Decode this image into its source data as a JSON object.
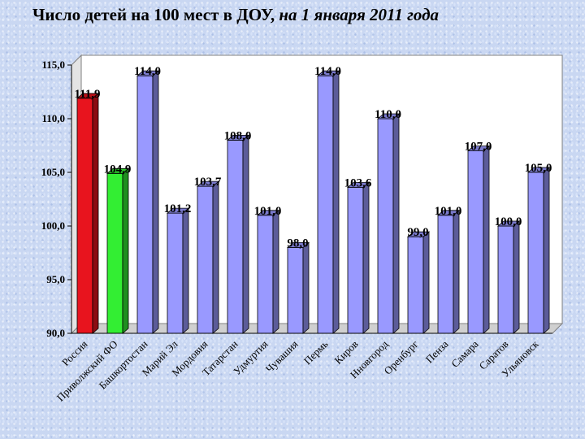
{
  "title": {
    "main": "Число детей на 100 мест в ДОУ,",
    "sub": "на 1 января 2011 года"
  },
  "chart_data": {
    "type": "bar",
    "title": "Число детей на 100 мест в ДОУ, на 1 января 2011 года",
    "categories": [
      "Россия",
      "Приволжский ФО",
      "Башкортостан",
      "Марий Эл",
      "Мордовия",
      "Татарстан",
      "Удмуртия",
      "Чувашия",
      "Пермь",
      "Киров",
      "Нновгород",
      "Оренбург",
      "Пенза",
      "Самара",
      "Саратов",
      "Ульяновск"
    ],
    "values": [
      111.9,
      104.9,
      114.0,
      101.2,
      103.7,
      108.0,
      101.0,
      98.0,
      114.0,
      103.6,
      110.0,
      99.0,
      101.0,
      107.0,
      100.0,
      105.0
    ],
    "value_labels": [
      "111,9",
      "104,9",
      "114,0",
      "101,2",
      "103,7",
      "108,0",
      "101,0",
      "98,0",
      "114,0",
      "103,6",
      "110,0",
      "99,0",
      "101,0",
      "107,0",
      "100,0",
      "105,0"
    ],
    "ylim": [
      90,
      115
    ],
    "yticks": [
      90,
      95,
      100,
      105,
      110,
      115
    ],
    "ytick_labels": [
      "90,0",
      "95,0",
      "100,0",
      "105,0",
      "110,0",
      "115,0"
    ],
    "xlabel": "",
    "ylabel": "",
    "grid": false,
    "bar_colors": [
      "#e8141e",
      "#33ee33",
      "#9999ff",
      "#9999ff",
      "#9999ff",
      "#9999ff",
      "#9999ff",
      "#9999ff",
      "#9999ff",
      "#9999ff",
      "#9999ff",
      "#9999ff",
      "#9999ff",
      "#9999ff",
      "#9999ff",
      "#9999ff"
    ],
    "plot_background": "#ffffff"
  }
}
